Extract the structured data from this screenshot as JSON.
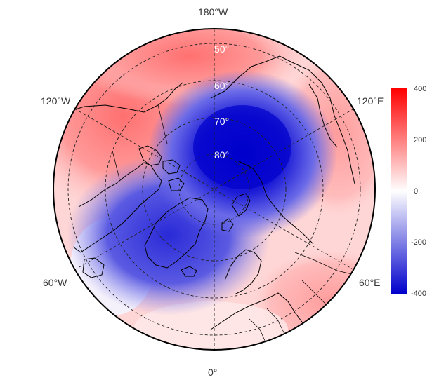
{
  "map": {
    "projection": "north-polar-stereographic",
    "longitude_labels": [
      "180°W",
      "120°W",
      "120°E",
      "60°W",
      "60°E",
      "0°"
    ],
    "latitude_labels": [
      "50°",
      "60°",
      "70°",
      "80°"
    ],
    "latitude_circles": [
      50,
      60,
      70,
      80
    ],
    "meridians": [
      0,
      60,
      120,
      180,
      -120,
      -60
    ],
    "colors": {
      "high": "#ff0000",
      "mid": "#ffffff",
      "low": "#0000cc",
      "coastline": "#000000"
    }
  },
  "legend": {
    "ticks": [
      "400",
      "200",
      "0",
      "-200",
      "-400"
    ],
    "range": [
      -400,
      400
    ]
  }
}
